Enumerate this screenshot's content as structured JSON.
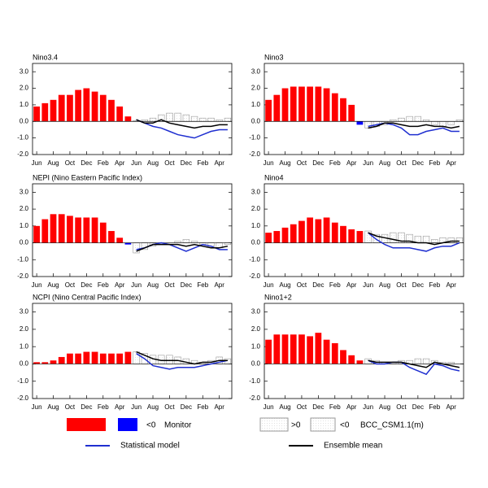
{
  "legend": {
    "monitor": {
      "positive": ">0",
      "negative": "<0",
      "name": "Monitor",
      "positive_color": "#ff0000",
      "negative_color": "#0000ff"
    },
    "model": {
      "positive": ">0",
      "negative": "<0",
      "name": "BCC_CSM1.1(m)",
      "color": "#999999"
    },
    "statistical": {
      "name": "Statistical model",
      "color": "#1f2fd0"
    },
    "ensemble": {
      "name": "Ensemble mean",
      "color": "#000000"
    }
  },
  "chart_data": [
    {
      "type": "bar",
      "title": "Nino3.4",
      "categories": [
        "Jun",
        null,
        "Aug",
        null,
        "Oct",
        null,
        "Dec",
        null,
        "Feb",
        null,
        "Apr",
        null,
        "Jun",
        null,
        "Aug",
        null,
        "Oct",
        null,
        "Dec",
        null,
        "Feb",
        null,
        "Apr",
        null
      ],
      "monitor": [
        0.9,
        1.1,
        1.3,
        1.6,
        1.6,
        1.9,
        2.0,
        1.8,
        1.6,
        1.3,
        0.9,
        0.3,
        null,
        null,
        null,
        null,
        null,
        null,
        null,
        null,
        null,
        null,
        null,
        null
      ],
      "model": [
        null,
        null,
        null,
        null,
        null,
        null,
        null,
        null,
        null,
        null,
        null,
        null,
        0.05,
        0.1,
        0.2,
        0.4,
        0.5,
        0.5,
        0.4,
        0.3,
        0.2,
        0.2,
        0.1,
        0.2
      ],
      "statistical": [
        null,
        null,
        null,
        null,
        null,
        null,
        null,
        null,
        null,
        null,
        null,
        null,
        0.1,
        -0.1,
        -0.3,
        -0.4,
        -0.6,
        -0.8,
        -0.9,
        -1.0,
        -0.8,
        -0.6,
        -0.5,
        -0.5
      ],
      "ensemble": [
        null,
        null,
        null,
        null,
        null,
        null,
        null,
        null,
        null,
        null,
        null,
        null,
        0.1,
        -0.1,
        -0.1,
        0.1,
        -0.1,
        -0.2,
        -0.3,
        -0.4,
        -0.3,
        -0.3,
        -0.2,
        -0.2
      ],
      "ylim": [
        -2,
        3.5
      ],
      "yticks": [
        {
          "value": -2,
          "label": "-2.0"
        },
        {
          "value": -1,
          "label": "-1.0"
        },
        {
          "value": 0,
          "label": "0.0"
        },
        {
          "value": 1,
          "label": "1.0"
        },
        {
          "value": 2,
          "label": "2.0"
        },
        {
          "value": 3,
          "label": "3.0"
        }
      ]
    },
    {
      "type": "bar",
      "title": "Nino3",
      "categories": [
        "Jun",
        null,
        "Aug",
        null,
        "Oct",
        null,
        "Dec",
        null,
        "Feb",
        null,
        "Apr",
        null,
        "Jun",
        null,
        "Aug",
        null,
        "Oct",
        null,
        "Dec",
        null,
        "Feb",
        null,
        "Apr",
        null
      ],
      "monitor": [
        1.3,
        1.6,
        2.0,
        2.1,
        2.1,
        2.1,
        2.1,
        2.0,
        1.7,
        1.4,
        1.0,
        -0.2,
        null,
        null,
        null,
        null,
        null,
        null,
        null,
        null,
        null,
        null,
        null,
        null
      ],
      "model": [
        null,
        null,
        null,
        null,
        null,
        null,
        null,
        null,
        null,
        null,
        null,
        null,
        -0.4,
        -0.3,
        -0.2,
        0.1,
        0.2,
        0.3,
        0.3,
        0.1,
        -0.2,
        -0.3,
        -0.2,
        0.1
      ],
      "statistical": [
        null,
        null,
        null,
        null,
        null,
        null,
        null,
        null,
        null,
        null,
        null,
        null,
        -0.3,
        -0.2,
        -0.1,
        -0.2,
        -0.4,
        -0.8,
        -0.8,
        -0.6,
        -0.5,
        -0.4,
        -0.6,
        -0.6
      ],
      "ensemble": [
        null,
        null,
        null,
        null,
        null,
        null,
        null,
        null,
        null,
        null,
        null,
        null,
        -0.4,
        -0.3,
        -0.1,
        -0.1,
        -0.2,
        -0.3,
        -0.3,
        -0.2,
        -0.3,
        -0.3,
        -0.4,
        -0.3
      ],
      "ylim": [
        -2,
        3.5
      ],
      "yticks": [
        {
          "value": -2,
          "label": "-2.0"
        },
        {
          "value": -1,
          "label": "-1.0"
        },
        {
          "value": 0,
          "label": "0.0"
        },
        {
          "value": 1,
          "label": "1.0"
        },
        {
          "value": 2,
          "label": "2.0"
        },
        {
          "value": 3,
          "label": "3.0"
        }
      ]
    },
    {
      "type": "bar",
      "title": "NEPI (Nino Eastern Pacific Index)",
      "categories": [
        "Jun",
        null,
        "Aug",
        null,
        "Oct",
        null,
        "Dec",
        null,
        "Feb",
        null,
        "Apr",
        null,
        "Jun",
        null,
        "Aug",
        null,
        "Oct",
        null,
        "Dec",
        null,
        "Feb",
        null,
        "Apr",
        null
      ],
      "monitor": [
        1.0,
        1.4,
        1.7,
        1.7,
        1.6,
        1.5,
        1.5,
        1.5,
        1.2,
        0.7,
        0.3,
        -0.1,
        null,
        null,
        null,
        null,
        null,
        null,
        null,
        null,
        null,
        null,
        null,
        null
      ],
      "model": [
        null,
        null,
        null,
        null,
        null,
        null,
        null,
        null,
        null,
        null,
        null,
        null,
        -0.6,
        -0.4,
        -0.2,
        -0.1,
        0.0,
        0.1,
        0.2,
        0.1,
        -0.1,
        -0.2,
        -0.3,
        -0.1
      ],
      "statistical": [
        null,
        null,
        null,
        null,
        null,
        null,
        null,
        null,
        null,
        null,
        null,
        null,
        -0.4,
        -0.3,
        -0.1,
        0.0,
        -0.1,
        -0.3,
        -0.5,
        -0.3,
        -0.1,
        -0.2,
        -0.4,
        -0.4
      ],
      "ensemble": [
        null,
        null,
        null,
        null,
        null,
        null,
        null,
        null,
        null,
        null,
        null,
        null,
        -0.5,
        -0.3,
        -0.1,
        -0.1,
        -0.1,
        -0.1,
        -0.2,
        -0.1,
        -0.2,
        -0.3,
        -0.3,
        -0.2
      ],
      "ylim": [
        -2,
        3.5
      ],
      "yticks": [
        {
          "value": -2,
          "label": "-2.0"
        },
        {
          "value": -1,
          "label": "-1.0"
        },
        {
          "value": 0,
          "label": "0.0"
        },
        {
          "value": 1,
          "label": "1.0"
        },
        {
          "value": 2,
          "label": "2.0"
        },
        {
          "value": 3,
          "label": "3.0"
        }
      ]
    },
    {
      "type": "bar",
      "title": "Nino4",
      "categories": [
        "Jun",
        null,
        "Aug",
        null,
        "Oct",
        null,
        "Dec",
        null,
        "Feb",
        null,
        "Apr",
        null,
        "Jun",
        null,
        "Aug",
        null,
        "Oct",
        null,
        "Dec",
        null,
        "Feb",
        null,
        "Apr",
        null
      ],
      "monitor": [
        0.6,
        0.7,
        0.9,
        1.1,
        1.3,
        1.5,
        1.4,
        1.5,
        1.2,
        1.0,
        0.8,
        0.7,
        null,
        null,
        null,
        null,
        null,
        null,
        null,
        null,
        null,
        null,
        null,
        null
      ],
      "model": [
        null,
        null,
        null,
        null,
        null,
        null,
        null,
        null,
        null,
        null,
        null,
        null,
        0.7,
        0.5,
        0.5,
        0.6,
        0.6,
        0.5,
        0.4,
        0.4,
        0.2,
        0.3,
        0.3,
        0.3
      ],
      "statistical": [
        null,
        null,
        null,
        null,
        null,
        null,
        null,
        null,
        null,
        null,
        null,
        null,
        0.6,
        0.2,
        -0.1,
        -0.3,
        -0.3,
        -0.3,
        -0.4,
        -0.5,
        -0.3,
        -0.2,
        -0.2,
        0.0
      ],
      "ensemble": [
        null,
        null,
        null,
        null,
        null,
        null,
        null,
        null,
        null,
        null,
        null,
        null,
        0.6,
        0.4,
        0.3,
        0.2,
        0.1,
        0.1,
        0.0,
        0.0,
        -0.1,
        0.0,
        0.1,
        0.1
      ],
      "ylim": [
        -2,
        3.5
      ],
      "yticks": [
        {
          "value": -2,
          "label": "-2.0"
        },
        {
          "value": -1,
          "label": "-1.0"
        },
        {
          "value": 0,
          "label": "0.0"
        },
        {
          "value": 1,
          "label": "1.0"
        },
        {
          "value": 2,
          "label": "2.0"
        },
        {
          "value": 3,
          "label": "3.0"
        }
      ]
    },
    {
      "type": "bar",
      "title": "NCPI (Nino Central Pacific Index)",
      "categories": [
        "Jun",
        null,
        "Aug",
        null,
        "Oct",
        null,
        "Dec",
        null,
        "Feb",
        null,
        "Apr",
        null,
        "Jun",
        null,
        "Aug",
        null,
        "Oct",
        null,
        "Dec",
        null,
        "Feb",
        null,
        "Apr",
        null
      ],
      "monitor": [
        0.1,
        0.1,
        0.2,
        0.4,
        0.6,
        0.6,
        0.7,
        0.7,
        0.6,
        0.6,
        0.6,
        0.7,
        null,
        null,
        null,
        null,
        null,
        null,
        null,
        null,
        null,
        null,
        null,
        null
      ],
      "model": [
        null,
        null,
        null,
        null,
        null,
        null,
        null,
        null,
        null,
        null,
        null,
        null,
        0.7,
        0.6,
        0.5,
        0.5,
        0.5,
        0.4,
        0.3,
        0.2,
        0.1,
        0.2,
        0.4,
        0.3
      ],
      "statistical": [
        null,
        null,
        null,
        null,
        null,
        null,
        null,
        null,
        null,
        null,
        null,
        null,
        0.6,
        0.3,
        -0.1,
        -0.2,
        -0.3,
        -0.2,
        -0.2,
        -0.2,
        -0.1,
        0.0,
        0.1,
        0.2
      ],
      "ensemble": [
        null,
        null,
        null,
        null,
        null,
        null,
        null,
        null,
        null,
        null,
        null,
        null,
        0.7,
        0.5,
        0.3,
        0.2,
        0.2,
        0.2,
        0.1,
        0.0,
        0.1,
        0.1,
        0.2,
        0.2
      ],
      "ylim": [
        -2,
        3.5
      ],
      "yticks": [
        {
          "value": -2,
          "label": "-2.0"
        },
        {
          "value": -1,
          "label": "-1.0"
        },
        {
          "value": 0,
          "label": "0.0"
        },
        {
          "value": 1,
          "label": "1.0"
        },
        {
          "value": 2,
          "label": "2.0"
        },
        {
          "value": 3,
          "label": "3.0"
        }
      ]
    },
    {
      "type": "bar",
      "title": "Nino1+2",
      "categories": [
        "Jun",
        null,
        "Aug",
        null,
        "Oct",
        null,
        "Dec",
        null,
        "Feb",
        null,
        "Apr",
        null,
        "Jun",
        null,
        "Aug",
        null,
        "Oct",
        null,
        "Dec",
        null,
        "Feb",
        null,
        "Apr",
        null
      ],
      "monitor": [
        1.4,
        1.7,
        1.7,
        1.7,
        1.7,
        1.6,
        1.8,
        1.4,
        1.2,
        0.8,
        0.5,
        0.2,
        null,
        null,
        null,
        null,
        null,
        null,
        null,
        null,
        null,
        null,
        null,
        null
      ],
      "model": [
        null,
        null,
        null,
        null,
        null,
        null,
        null,
        null,
        null,
        null,
        null,
        null,
        0.3,
        0.2,
        0.1,
        0.1,
        0.2,
        0.2,
        0.3,
        0.3,
        0.2,
        0.1,
        0.1,
        0.0
      ],
      "statistical": [
        null,
        null,
        null,
        null,
        null,
        null,
        null,
        null,
        null,
        null,
        null,
        null,
        0.2,
        0.0,
        0.0,
        0.1,
        0.1,
        -0.2,
        -0.4,
        -0.6,
        0.0,
        -0.1,
        -0.3,
        -0.4
      ],
      "ensemble": [
        null,
        null,
        null,
        null,
        null,
        null,
        null,
        null,
        null,
        null,
        null,
        null,
        0.2,
        0.1,
        0.1,
        0.1,
        0.1,
        0.0,
        -0.1,
        -0.2,
        0.1,
        0.0,
        -0.1,
        -0.2
      ],
      "ylim": [
        -2,
        3.5
      ],
      "yticks": [
        {
          "value": -2,
          "label": "-2.0"
        },
        {
          "value": -1,
          "label": "-1.0"
        },
        {
          "value": 0,
          "label": "0.0"
        },
        {
          "value": 1,
          "label": "1.0"
        },
        {
          "value": 2,
          "label": "2.0"
        },
        {
          "value": 3,
          "label": "3.0"
        }
      ]
    }
  ]
}
